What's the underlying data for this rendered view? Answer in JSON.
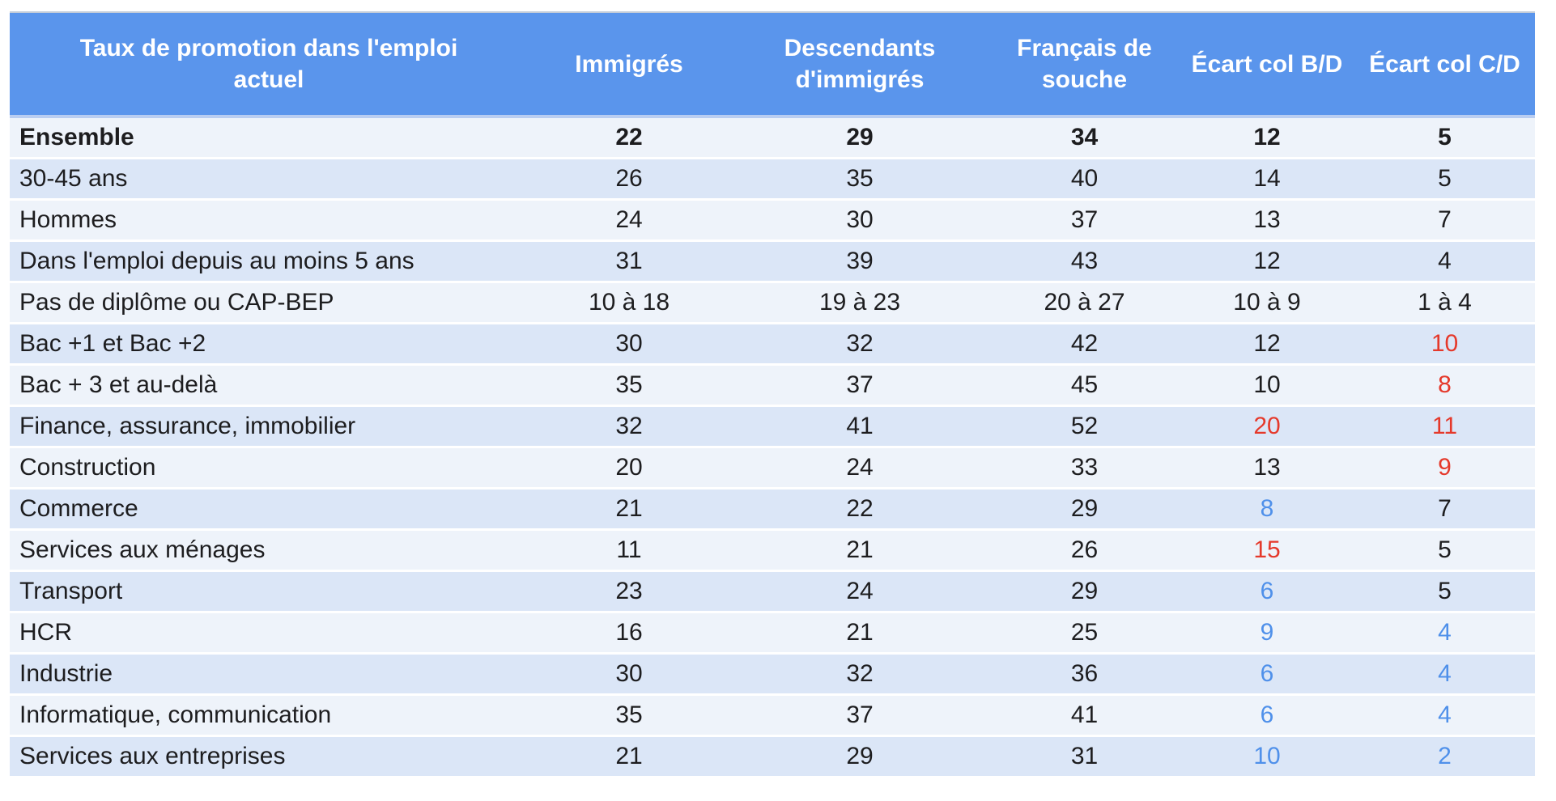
{
  "chart_data": {
    "type": "table",
    "title": "Taux de promotion dans l'emploi actuel",
    "columns": [
      "Immigrés",
      "Descendants d'immigrés",
      "Français de souche",
      "Écart col B/D",
      "Écart col C/D"
    ],
    "rows": [
      {
        "label": "Ensemble",
        "bold": true,
        "values": [
          {
            "t": "22"
          },
          {
            "t": "29"
          },
          {
            "t": "34"
          },
          {
            "t": "12"
          },
          {
            "t": "5"
          }
        ]
      },
      {
        "label": "30-45 ans",
        "values": [
          {
            "t": "26"
          },
          {
            "t": "35"
          },
          {
            "t": "40"
          },
          {
            "t": "14"
          },
          {
            "t": "5"
          }
        ]
      },
      {
        "label": "Hommes",
        "values": [
          {
            "t": "24"
          },
          {
            "t": "30"
          },
          {
            "t": "37"
          },
          {
            "t": "13"
          },
          {
            "t": "7"
          }
        ]
      },
      {
        "label": "Dans l'emploi depuis au moins 5 ans",
        "values": [
          {
            "t": "31"
          },
          {
            "t": "39"
          },
          {
            "t": "43"
          },
          {
            "t": "12"
          },
          {
            "t": "4"
          }
        ]
      },
      {
        "label": "Pas de diplôme ou CAP-BEP",
        "values": [
          {
            "t": "10 à 18"
          },
          {
            "t": "19 à 23"
          },
          {
            "t": "20 à 27"
          },
          {
            "t": "10 à 9"
          },
          {
            "t": "1 à 4"
          }
        ]
      },
      {
        "label": "Bac +1 et Bac +2",
        "values": [
          {
            "t": "30"
          },
          {
            "t": "32"
          },
          {
            "t": "42"
          },
          {
            "t": "12"
          },
          {
            "t": "10",
            "c": "red"
          }
        ]
      },
      {
        "label": "Bac + 3 et au-delà",
        "values": [
          {
            "t": "35"
          },
          {
            "t": "37"
          },
          {
            "t": "45"
          },
          {
            "t": "10"
          },
          {
            "t": "8",
            "c": "red"
          }
        ]
      },
      {
        "label": "Finance, assurance, immobilier",
        "values": [
          {
            "t": "32"
          },
          {
            "t": "41"
          },
          {
            "t": "52"
          },
          {
            "t": "20",
            "c": "red"
          },
          {
            "t": "11",
            "c": "red"
          }
        ]
      },
      {
        "label": "Construction",
        "values": [
          {
            "t": "20"
          },
          {
            "t": "24"
          },
          {
            "t": "33"
          },
          {
            "t": "13"
          },
          {
            "t": "9",
            "c": "red"
          }
        ]
      },
      {
        "label": "Commerce",
        "values": [
          {
            "t": "21"
          },
          {
            "t": "22"
          },
          {
            "t": "29"
          },
          {
            "t": "8",
            "c": "blue"
          },
          {
            "t": "7"
          }
        ]
      },
      {
        "label": "Services aux ménages",
        "values": [
          {
            "t": "11"
          },
          {
            "t": "21"
          },
          {
            "t": "26"
          },
          {
            "t": "15",
            "c": "red"
          },
          {
            "t": "5"
          }
        ]
      },
      {
        "label": "Transport",
        "values": [
          {
            "t": "23"
          },
          {
            "t": "24"
          },
          {
            "t": "29"
          },
          {
            "t": "6",
            "c": "blue"
          },
          {
            "t": "5"
          }
        ]
      },
      {
        "label": "HCR",
        "values": [
          {
            "t": "16"
          },
          {
            "t": "21"
          },
          {
            "t": "25"
          },
          {
            "t": "9",
            "c": "blue"
          },
          {
            "t": "4",
            "c": "blue"
          }
        ]
      },
      {
        "label": "Industrie",
        "values": [
          {
            "t": "30"
          },
          {
            "t": "32"
          },
          {
            "t": "36"
          },
          {
            "t": "6",
            "c": "blue"
          },
          {
            "t": "4",
            "c": "blue"
          }
        ]
      },
      {
        "label": "Informatique, communication",
        "values": [
          {
            "t": "35"
          },
          {
            "t": "37"
          },
          {
            "t": "41"
          },
          {
            "t": "6",
            "c": "blue"
          },
          {
            "t": "4",
            "c": "blue"
          }
        ]
      },
      {
        "label": "Services aux entreprises",
        "values": [
          {
            "t": "21"
          },
          {
            "t": "29"
          },
          {
            "t": "31"
          },
          {
            "t": "10",
            "c": "blue"
          },
          {
            "t": "2",
            "c": "blue"
          }
        ]
      }
    ]
  },
  "colors": {
    "header_bg": "#5a95ec",
    "header_text": "#ffffff",
    "header_separator": "#b9cdf1",
    "top_border": "#c3ccd9",
    "row_light": "#eef3fa",
    "row_dark": "#dbe6f7",
    "text": "#1d1d1f",
    "accent_red": "#e5392b",
    "accent_blue": "#4f90ea"
  }
}
